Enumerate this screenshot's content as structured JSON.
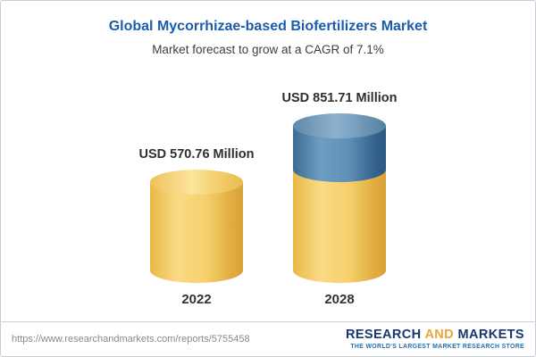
{
  "chart_data": {
    "type": "bar",
    "variant": "3d-cylinder",
    "title": "Global Mycorrhizae-based Biofertilizers Market",
    "subtitle": "Market forecast to grow at a CAGR of 7.1%",
    "cagr": "7.1%",
    "categories": [
      "2022",
      "2028"
    ],
    "values": [
      570.76,
      851.71
    ],
    "unit": "USD Million",
    "value_labels": [
      "USD 570.76 Million",
      "USD 851.71 Million"
    ],
    "ylim": [
      0,
      851.71
    ],
    "legend": "none",
    "grid": "off",
    "segment_colors": {
      "base": "#F5CE6A",
      "growth": "#5688B4"
    }
  },
  "footer": {
    "url": "https://www.researchandmarkets.com/reports/5755458",
    "logo": {
      "word1": "RESEARCH",
      "word2": "AND",
      "word3": "MARKETS",
      "tagline": "THE WORLD'S LARGEST MARKET RESEARCH STORE"
    }
  },
  "colors": {
    "title": "#1A5DAD",
    "base_segment": "#F5CE6A",
    "growth_segment": "#5688B4",
    "logo_navy": "#17376E",
    "logo_gold": "#E9A63A"
  }
}
